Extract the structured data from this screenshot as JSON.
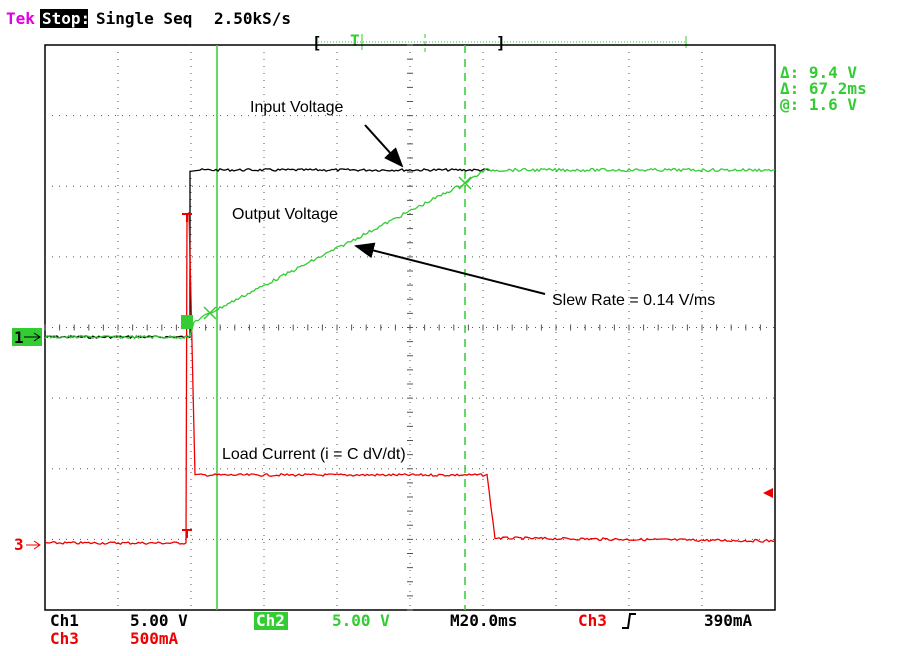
{
  "header": {
    "brand": "Tek",
    "status": "Stop:",
    "mode": "Single Seq",
    "sample_rate": "2.50kS/s"
  },
  "readouts": [
    "Δ: 9.4 V",
    "Δ: 67.2ms",
    "@: 1.6 V"
  ],
  "annotations": {
    "input": "Input Voltage",
    "output": "Output Voltage",
    "slew": "Slew Rate = 0.14 V/ms",
    "load": "Load Current (i = C dV/dt)"
  },
  "channel_markers": [
    "1",
    "3"
  ],
  "footer": {
    "ch1_label": "Ch1",
    "ch1_scale": "5.00 V",
    "ch2_label": "Ch2",
    "ch2_scale": "5.00 V",
    "timebase": "M20.0ms",
    "trigger_source": "Ch3",
    "trigger_level": "390mA",
    "ch3_label": "Ch3",
    "ch3_scale": "500mA"
  }
}
